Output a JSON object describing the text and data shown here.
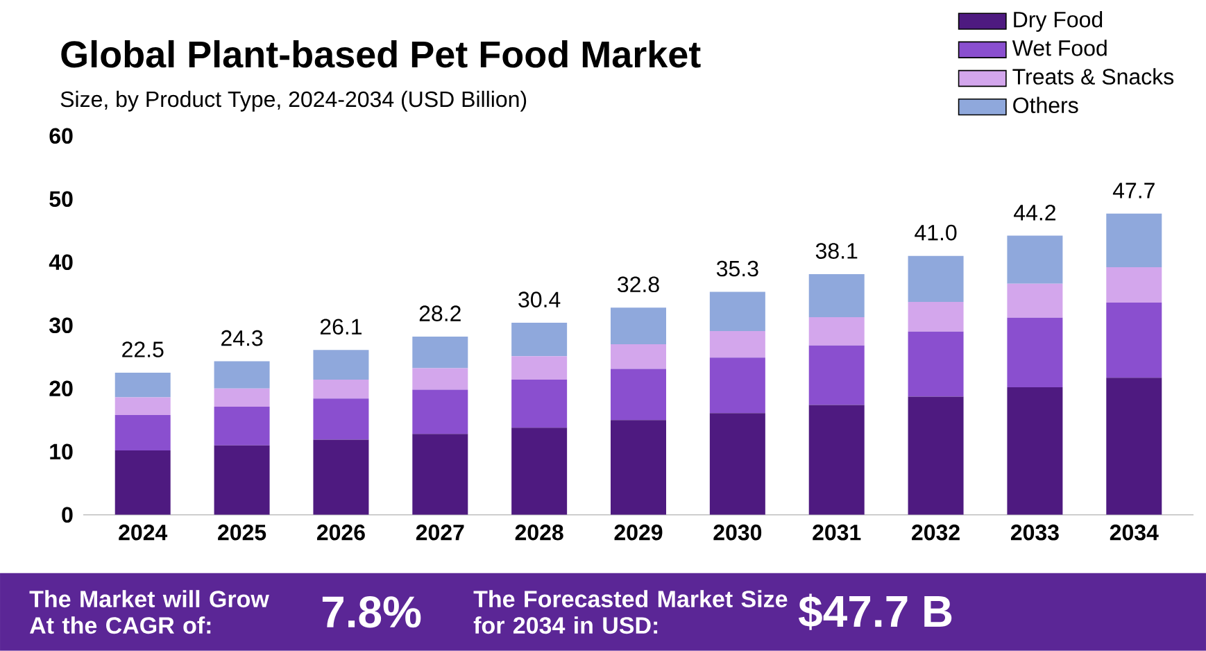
{
  "chart_data": {
    "type": "bar",
    "stacked": true,
    "title": "Global Plant-based Pet Food Market",
    "subtitle": "Size, by Product Type, 2024-2034 (USD Billion)",
    "categories": [
      "2024",
      "2025",
      "2026",
      "2027",
      "2028",
      "2029",
      "2030",
      "2031",
      "2032",
      "2033",
      "2034"
    ],
    "series": [
      {
        "name": "Dry Food",
        "color": "#4e1a80",
        "values": [
          10.2,
          11.0,
          11.9,
          12.8,
          13.8,
          15.0,
          16.1,
          17.4,
          18.7,
          20.2,
          21.7
        ]
      },
      {
        "name": "Wet Food",
        "color": "#8a4fcf",
        "values": [
          5.6,
          6.1,
          6.5,
          7.0,
          7.6,
          8.1,
          8.8,
          9.4,
          10.3,
          11.0,
          11.9
        ]
      },
      {
        "name": "Treats & Snacks",
        "color": "#d3a6ec",
        "values": [
          2.8,
          2.9,
          3.0,
          3.4,
          3.7,
          3.9,
          4.2,
          4.5,
          4.7,
          5.4,
          5.6
        ]
      },
      {
        "name": "Others",
        "color": "#8fa8dc",
        "values": [
          3.9,
          4.3,
          4.7,
          5.0,
          5.3,
          5.8,
          6.2,
          6.8,
          7.3,
          7.6,
          8.5
        ]
      }
    ],
    "totals": [
      "22.5",
      "24.3",
      "26.1",
      "28.2",
      "30.4",
      "32.8",
      "35.3",
      "38.1",
      "41.0",
      "44.2",
      "47.7"
    ],
    "ylim": [
      0,
      60
    ],
    "yticks": [
      0,
      10,
      20,
      30,
      40,
      50,
      60
    ],
    "legend": "top right",
    "annotations": [
      "The Market will Grow At the CAGR of:",
      "7.8%",
      "The Forecasted Market Size for 2034 in USD:",
      "$47.7 B"
    ]
  }
}
